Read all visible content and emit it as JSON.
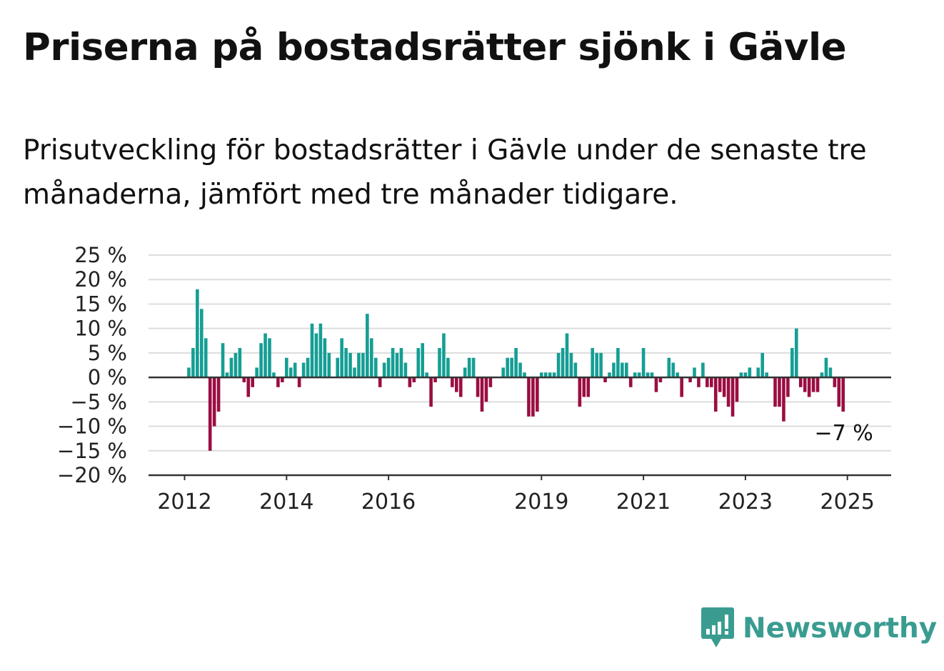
{
  "title": "Priserna på bostadsrätter sjönk i Gävle",
  "subtitle": "Prisutveckling för bostadsrätter i Gävle under de senaste tre månaderna, jämfört med tre månader tidigare.",
  "brand": "Newsworthy",
  "colors": {
    "positive": "#159e94",
    "negative": "#9b0d42",
    "grid": "#dddddd",
    "axis": "#333333",
    "brand": "#3a9c91"
  },
  "chart_data": {
    "type": "bar",
    "title": "",
    "xlabel": "",
    "ylabel": "",
    "ylim": [
      -20,
      25
    ],
    "y_ticks": [
      25,
      20,
      15,
      10,
      5,
      0,
      -5,
      -10,
      -15,
      -20
    ],
    "y_tick_labels": [
      "25 %",
      "20 %",
      "15 %",
      "10 %",
      "5 %",
      "0 %",
      "−5 %",
      "−10 %",
      "−15 %",
      "−20 %"
    ],
    "x_ticks": [
      {
        "label": "2012",
        "index": 0
      },
      {
        "label": "2014",
        "index": 24
      },
      {
        "label": "2016",
        "index": 48
      },
      {
        "label": "2019",
        "index": 84
      },
      {
        "label": "2021",
        "index": 108
      },
      {
        "label": "2023",
        "index": 132
      },
      {
        "label": "2025",
        "index": 156
      }
    ],
    "first_month": "2012-01",
    "last_label": "−7 %",
    "grid": true,
    "legend": "none",
    "values": [
      null,
      2,
      6,
      18,
      14,
      8,
      -15,
      -10,
      -7,
      7,
      1,
      4,
      5,
      6,
      -1,
      -4,
      -2,
      2,
      7,
      9,
      8,
      1,
      -2,
      -1,
      4,
      2,
      3,
      -2,
      3,
      4,
      11,
      9,
      11,
      8,
      5,
      null,
      4,
      8,
      6,
      5,
      2,
      5,
      5,
      13,
      8,
      4,
      -2,
      3,
      4,
      6,
      5,
      6,
      3,
      -2,
      -1,
      6,
      7,
      1,
      -6,
      -1,
      6,
      9,
      4,
      -2,
      -3,
      -4,
      2,
      4,
      4,
      -4,
      -7,
      -5,
      -2,
      null,
      null,
      2,
      4,
      4,
      6,
      3,
      1,
      -8,
      -8,
      -7,
      1,
      1,
      1,
      1,
      5,
      6,
      9,
      5,
      3,
      -6,
      -4,
      -4,
      6,
      5,
      5,
      -1,
      1,
      3,
      6,
      3,
      3,
      -2,
      1,
      1,
      6,
      1,
      1,
      -3,
      -1,
      null,
      4,
      3,
      1,
      -4,
      null,
      -1,
      2,
      -2,
      3,
      -2,
      -2,
      -7,
      -3,
      -4,
      -6,
      -8,
      -5,
      1,
      1,
      2,
      null,
      2,
      5,
      1,
      null,
      -6,
      -6,
      -9,
      -4,
      6,
      10,
      -2,
      -3,
      -4,
      -3,
      -3,
      1,
      4,
      2,
      -2,
      -6,
      -7
    ]
  }
}
